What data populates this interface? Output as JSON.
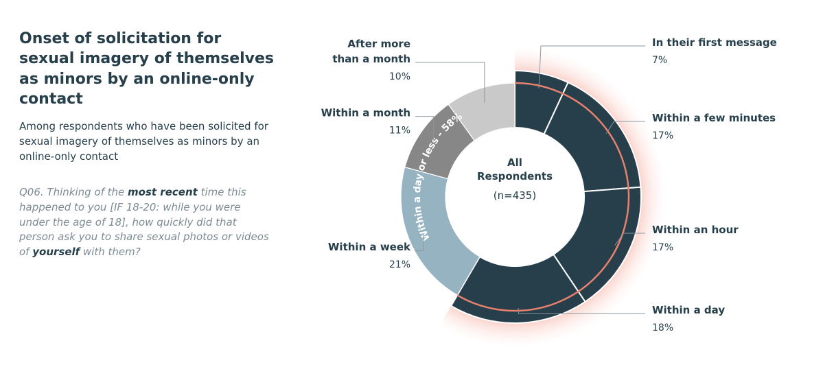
{
  "header": {
    "title": "Onset of solicitation for sexual imagery of themselves as minors by an online-only contact",
    "subtitle": "Among respondents who have been solicited for sexual imagery of themselves as minors by an online-only contact",
    "question": {
      "p1": "Q06. Thinking of the ",
      "b1": "most recent",
      "p2": " time this happened to you [IF 18-20: while you were under the age of 18], how quickly did that person ask you to share sexual photos or videos of ",
      "b2": "yourself",
      "p3": " with them?"
    }
  },
  "chart_data": {
    "type": "pie",
    "style": "donut",
    "center_label": {
      "line1": "All",
      "line2": "Respondents",
      "line3": "(n=435)"
    },
    "group_label": "Within a day or less - 58%",
    "unit": "%",
    "slices": [
      {
        "label": "In their first message",
        "value": 7,
        "value_label": "7%",
        "color": "#263f4b",
        "group": "day"
      },
      {
        "label": "Within a few minutes",
        "value": 17,
        "value_label": "17%",
        "color": "#263f4b",
        "group": "day"
      },
      {
        "label": "Within an hour",
        "value": 17,
        "value_label": "17%",
        "color": "#263f4b",
        "group": "day"
      },
      {
        "label": "Within a day",
        "value": 18,
        "value_label": "18%",
        "color": "#263f4b",
        "group": "day"
      },
      {
        "label": "Within a week",
        "value": 21,
        "value_label": "21%",
        "color": "#95b3c1",
        "group": ""
      },
      {
        "label": "Within a month",
        "value": 11,
        "value_label": "11%",
        "color": "#878787",
        "group": ""
      },
      {
        "label": "After more than a month",
        "value": 10,
        "value_label": "10%",
        "color": "#c9c9c9",
        "group": ""
      }
    ],
    "accent_color": "#e8826e"
  }
}
